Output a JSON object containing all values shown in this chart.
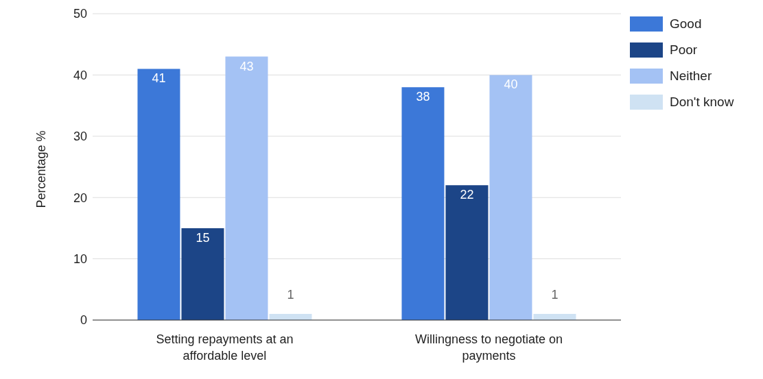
{
  "chart_data": {
    "type": "bar",
    "ylabel": "Percentage %",
    "categories": [
      "Setting repayments at an affordable level",
      "Willingness to negotiate on payments"
    ],
    "series": [
      {
        "name": "Good",
        "color": "#3c78d8",
        "values": [
          41,
          38
        ]
      },
      {
        "name": "Poor",
        "color": "#1c4587",
        "values": [
          15,
          22
        ]
      },
      {
        "name": "Neither",
        "color": "#a4c2f4",
        "values": [
          43,
          40
        ]
      },
      {
        "name": "Don't know",
        "color": "#cfe2f3",
        "values": [
          1,
          1
        ]
      }
    ],
    "ylim": [
      0,
      50
    ],
    "yticks": [
      0,
      10,
      20,
      30,
      40,
      50
    ],
    "grid": "y",
    "legend": "top right",
    "data_labels": true
  }
}
